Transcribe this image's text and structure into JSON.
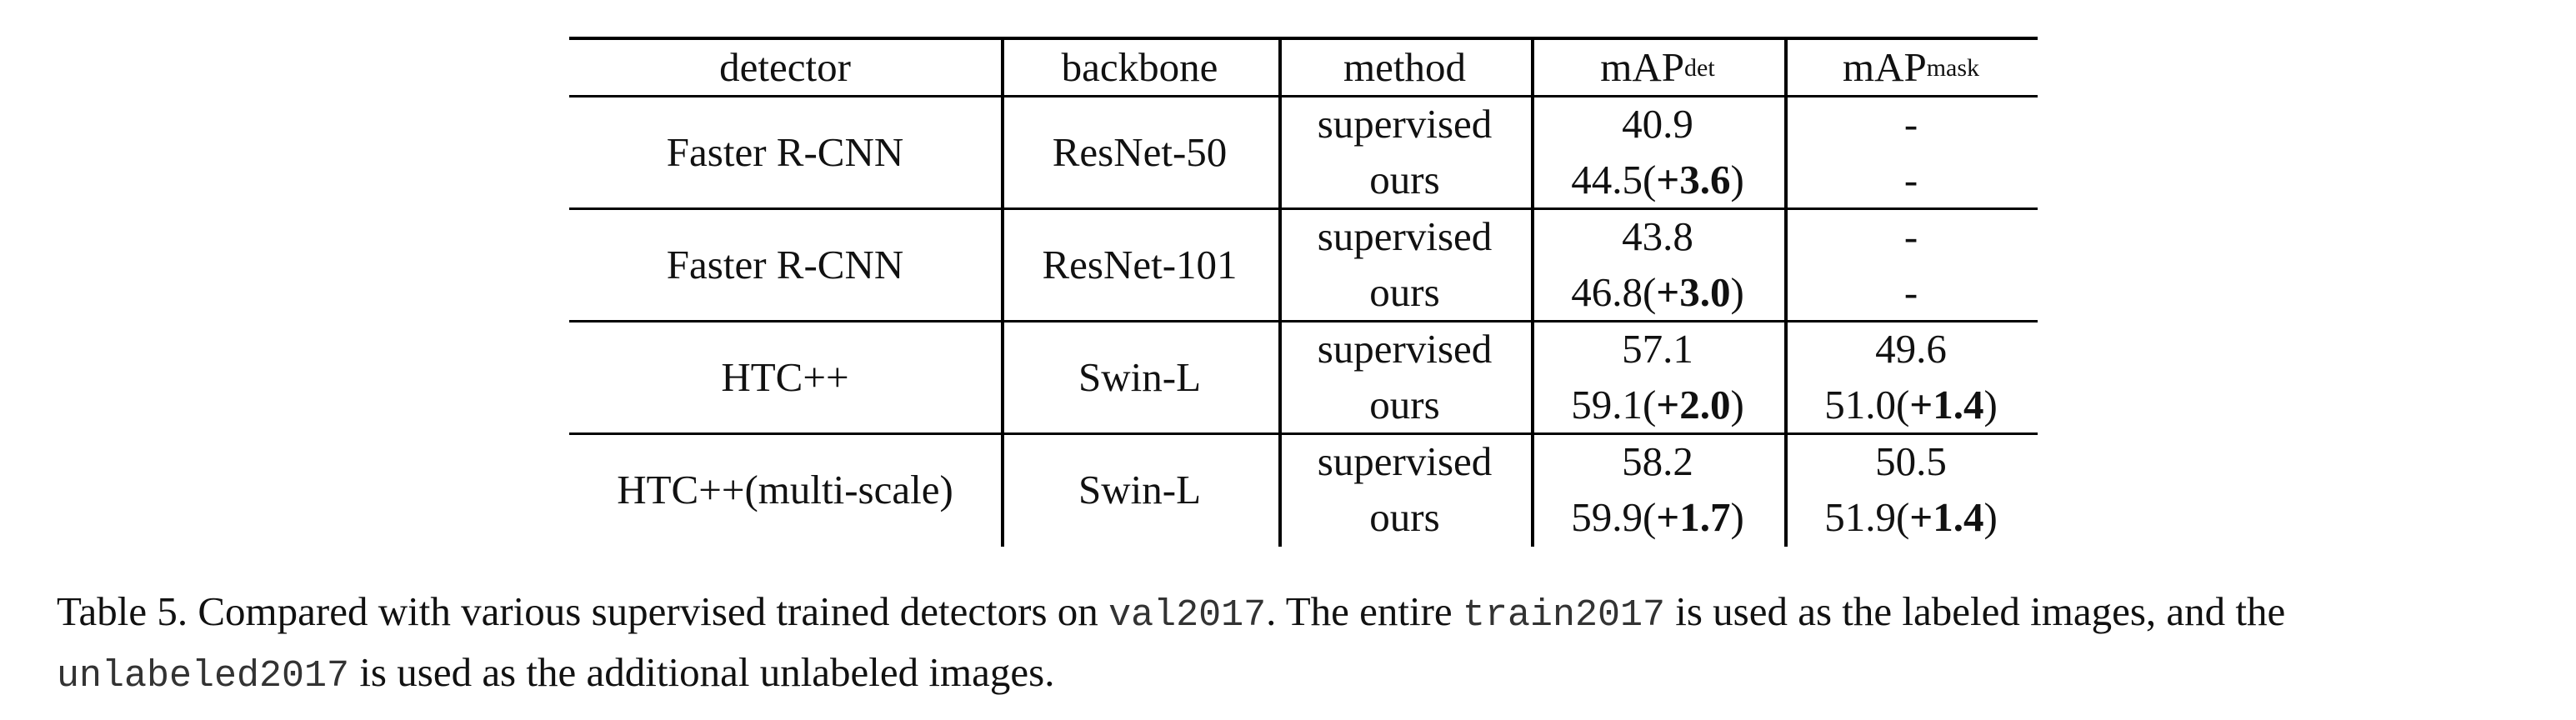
{
  "table": {
    "headers": {
      "detector": "detector",
      "backbone": "backbone",
      "method": "method",
      "map_det_base": "mAP",
      "map_det_sup": "det",
      "map_mask_base": "mAP",
      "map_mask_sup": "mask"
    },
    "groups": [
      {
        "detector": "Faster R-CNN",
        "backbone": "ResNet-50",
        "rows": [
          {
            "method": "supervised",
            "map_det": "40.9",
            "map_det_gain": "",
            "map_mask": "-",
            "map_mask_gain": ""
          },
          {
            "method": "ours",
            "map_det": "44.5",
            "map_det_gain": "+3.6",
            "map_mask": "-",
            "map_mask_gain": ""
          }
        ]
      },
      {
        "detector": "Faster R-CNN",
        "backbone": "ResNet-101",
        "rows": [
          {
            "method": "supervised",
            "map_det": "43.8",
            "map_det_gain": "",
            "map_mask": "-",
            "map_mask_gain": ""
          },
          {
            "method": "ours",
            "map_det": "46.8",
            "map_det_gain": "+3.0",
            "map_mask": "-",
            "map_mask_gain": ""
          }
        ]
      },
      {
        "detector": "HTC++",
        "backbone": "Swin-L",
        "rows": [
          {
            "method": "supervised",
            "map_det": "57.1",
            "map_det_gain": "",
            "map_mask": "49.6",
            "map_mask_gain": ""
          },
          {
            "method": "ours",
            "map_det": "59.1",
            "map_det_gain": "+2.0",
            "map_mask": "51.0",
            "map_mask_gain": "+1.4"
          }
        ]
      },
      {
        "detector": "HTC++(multi-scale)",
        "backbone": "Swin-L",
        "rows": [
          {
            "method": "supervised",
            "map_det": "58.2",
            "map_det_gain": "",
            "map_mask": "50.5",
            "map_mask_gain": ""
          },
          {
            "method": "ours",
            "map_det": "59.9",
            "map_det_gain": "+1.7",
            "map_mask": "51.9",
            "map_mask_gain": "+1.4"
          }
        ]
      }
    ]
  },
  "caption": {
    "t1": "Table 5. Compared with various supervised trained detectors on ",
    "c1": "val2017",
    "t2": ". The entire ",
    "c2": "train2017",
    "t3": " is used as the labeled images, and the",
    "c3": "unlabeled2017",
    "t4": " is used as the additional unlabeled images."
  }
}
